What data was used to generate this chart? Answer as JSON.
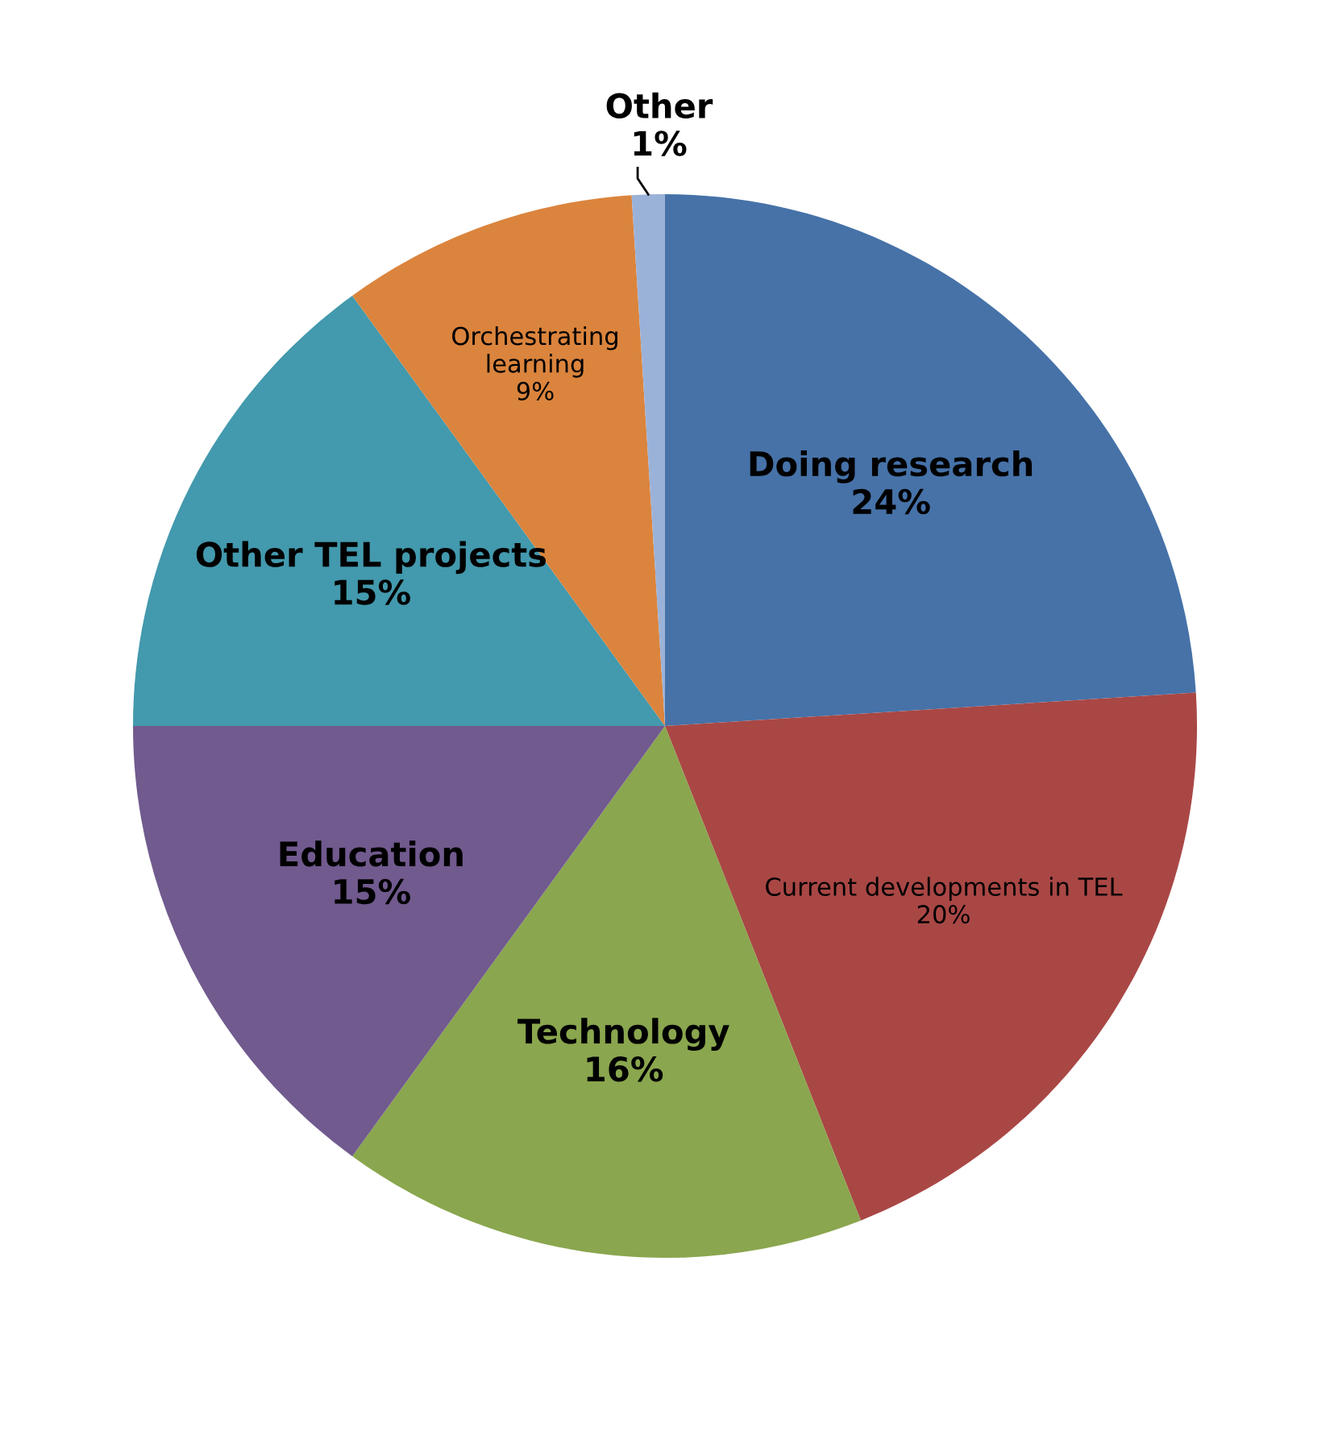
{
  "chart_data": {
    "type": "pie",
    "categories": [
      "Doing research",
      "Current developments in TEL",
      "Technology",
      "Education",
      "Other TEL projects",
      "Orchestrating learning",
      "Other"
    ],
    "values": [
      24,
      20,
      16,
      15,
      15,
      9,
      1
    ],
    "value_labels": [
      "24%",
      "20%",
      "16%",
      "15%",
      "15%",
      "9%",
      "1%"
    ],
    "colors": [
      "#4672a8",
      "#a94745",
      "#8aa64e",
      "#715a8e",
      "#4399ad",
      "#db843d",
      "#9bb2d8"
    ],
    "legend": false
  }
}
